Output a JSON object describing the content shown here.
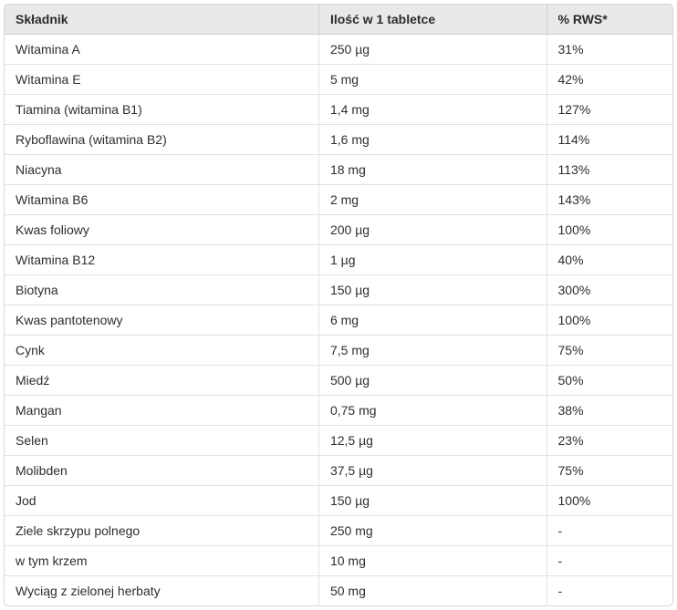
{
  "colors": {
    "header_background": "#e9e9e9",
    "outer_border": "#d6d6d6",
    "row_divider": "#e2e2e2",
    "text": "#2e2e2e"
  },
  "table": {
    "columns": [
      {
        "label": "Składnik"
      },
      {
        "label": "Ilość w 1 tabletce"
      },
      {
        "label": "% RWS*"
      }
    ],
    "rows": [
      {
        "ingredient": "Witamina A",
        "amount": "250 µg",
        "rws": "31%"
      },
      {
        "ingredient": "Witamina E",
        "amount": "5 mg",
        "rws": "42%"
      },
      {
        "ingredient": "Tiamina (witamina B1)",
        "amount": "1,4 mg",
        "rws": "127%"
      },
      {
        "ingredient": "Ryboflawina (witamina B2)",
        "amount": "1,6 mg",
        "rws": "114%"
      },
      {
        "ingredient": "Niacyna",
        "amount": "18 mg",
        "rws": "113%"
      },
      {
        "ingredient": "Witamina B6",
        "amount": "2 mg",
        "rws": "143%"
      },
      {
        "ingredient": "Kwas foliowy",
        "amount": "200 µg",
        "rws": "100%"
      },
      {
        "ingredient": "Witamina B12",
        "amount": "1 µg",
        "rws": "40%"
      },
      {
        "ingredient": "Biotyna",
        "amount": "150 µg",
        "rws": "300%"
      },
      {
        "ingredient": "Kwas pantotenowy",
        "amount": "6 mg",
        "rws": "100%"
      },
      {
        "ingredient": "Cynk",
        "amount": "7,5 mg",
        "rws": "75%"
      },
      {
        "ingredient": "Miedź",
        "amount": "500 µg",
        "rws": "50%"
      },
      {
        "ingredient": "Mangan",
        "amount": "0,75 mg",
        "rws": "38%"
      },
      {
        "ingredient": "Selen",
        "amount": "12,5 µg",
        "rws": "23%"
      },
      {
        "ingredient": "Molibden",
        "amount": "37,5 µg",
        "rws": "75%"
      },
      {
        "ingredient": "Jod",
        "amount": "150 µg",
        "rws": "100%"
      },
      {
        "ingredient": "Ziele skrzypu polnego",
        "amount": "250 mg",
        "rws": "-"
      },
      {
        "ingredient": "w tym krzem",
        "amount": "10 mg",
        "rws": "-"
      },
      {
        "ingredient": "Wyciąg z zielonej herbaty",
        "amount": "50 mg",
        "rws": "-"
      }
    ]
  }
}
